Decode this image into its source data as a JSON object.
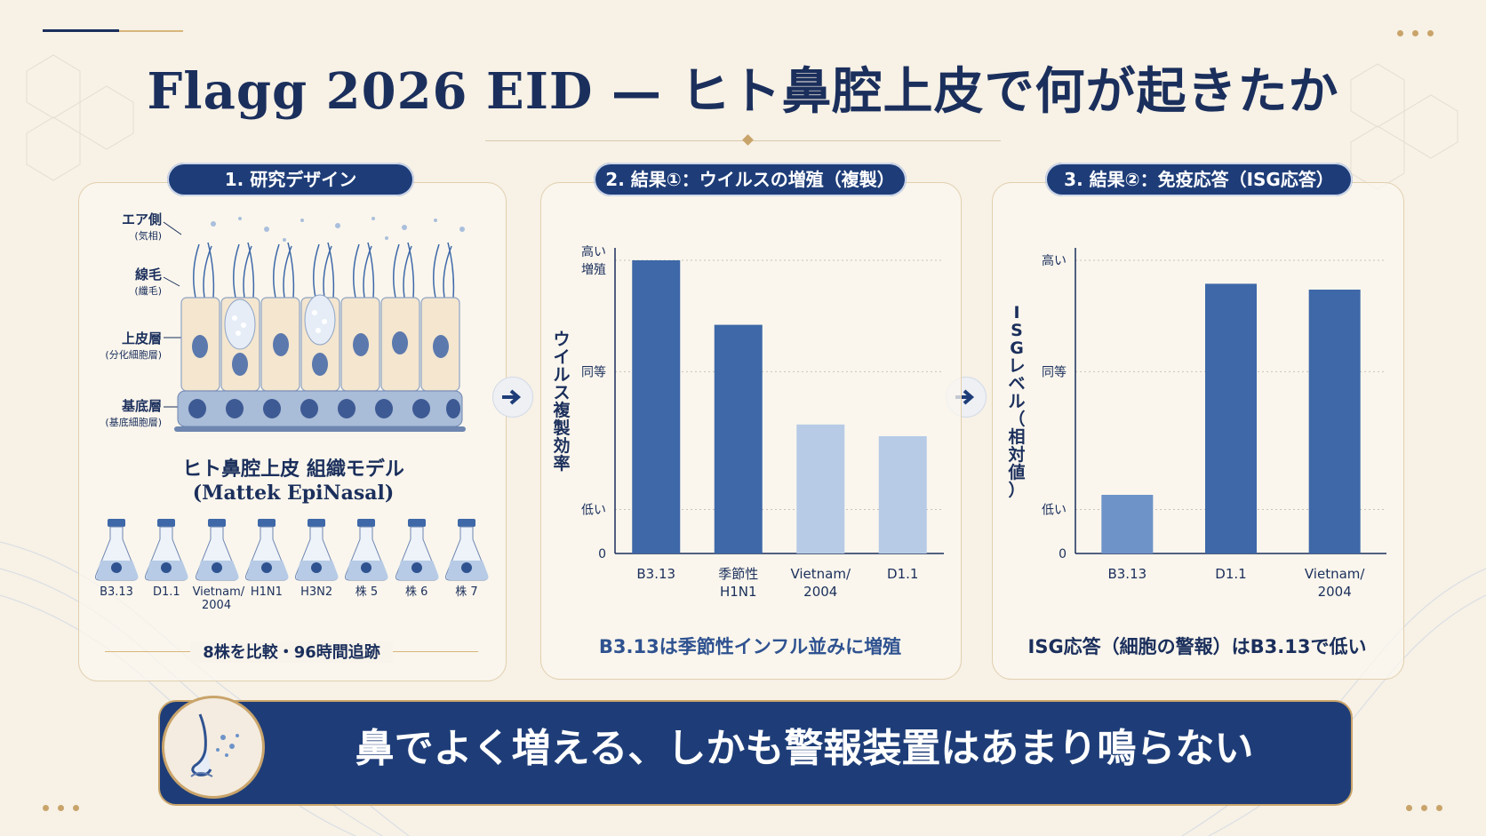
{
  "title": "Flagg 2026 EID — ヒト鼻腔上皮で何が起きたか",
  "panel1": {
    "heading": "1. 研究デザイン",
    "labels": [
      {
        "main": "エア側",
        "sub": "(気相)"
      },
      {
        "main": "線毛",
        "sub": "(纖毛)"
      },
      {
        "main": "上皮層",
        "sub": "(分化細胞層)"
      },
      {
        "main": "基底層",
        "sub": "(基底細胞層)"
      }
    ],
    "model_title": "ヒト鼻腔上皮 組織モデル",
    "model_sub": "(Mattek EpiNasal)",
    "strains": [
      "B3.13",
      "D1.1",
      "Vietnam/\n2004",
      "H1N1",
      "H3N2",
      "株 5",
      "株 6",
      "株 7"
    ],
    "caption": "8株を比較・96時間追跡"
  },
  "panel2": {
    "heading": "2. 結果①：ウイルスの増殖（複製）",
    "caption": "B3.13は季節性インフル並みに増殖"
  },
  "panel3": {
    "heading": "3. 結果②：免疫応答（ISG応答）",
    "caption": "ISG応答（細胞の警報）はB3.13で低い"
  },
  "banner": {
    "text": "鼻でよく増える、しかも警報装置はあまり鳴らない"
  },
  "colors": {
    "navy": "#1e3d78",
    "mid_blue": "#3e68a8",
    "light_blue": "#b7cbe6",
    "gold": "#c9a46a"
  },
  "chart_data": [
    {
      "type": "bar",
      "ylabel": "ウイルス複製効率",
      "y_tick_labels": [
        "高い\n増殖",
        "同等",
        "低い",
        "0"
      ],
      "categories": [
        "B3.13",
        "季節性\nH1N1",
        "Vietnam/\n2004",
        "D1.1"
      ],
      "values": [
        1.0,
        0.78,
        0.44,
        0.4
      ],
      "bar_colors": [
        "#3e68a8",
        "#3e68a8",
        "#b7cbe6",
        "#b7cbe6"
      ],
      "ylim": [
        0,
        1.0
      ],
      "grid": true
    },
    {
      "type": "bar",
      "ylabel": "ISGレベル（相対値）",
      "y_tick_labels": [
        "高い",
        "同等",
        "低い",
        "0"
      ],
      "categories": [
        "B3.13",
        "D1.1",
        "Vietnam/\n2004"
      ],
      "values": [
        0.2,
        0.92,
        0.9
      ],
      "bar_colors": [
        "#6d93c9",
        "#3e68a8",
        "#3e68a8"
      ],
      "ylim": [
        0,
        1.0
      ],
      "grid": true
    }
  ]
}
